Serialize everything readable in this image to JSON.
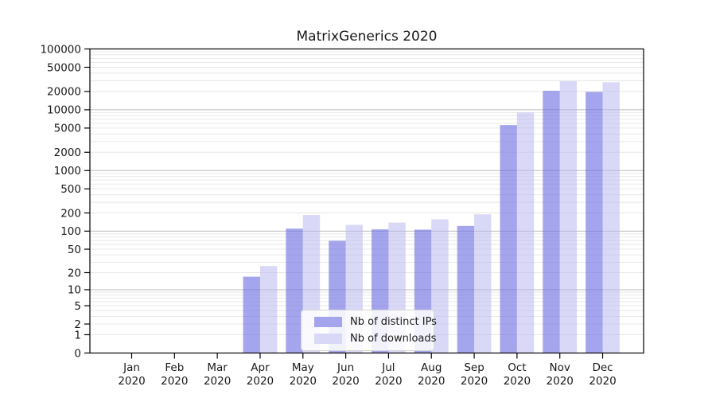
{
  "title": "MatrixGenerics 2020",
  "legend": {
    "items": [
      {
        "label": "Nb of distinct IPs",
        "series_key": "ips"
      },
      {
        "label": "Nb of downloads",
        "series_key": "downloads"
      }
    ],
    "position": "inside-bottom-center"
  },
  "colors": {
    "bar_ips": "rgba(105,105,225,0.6)",
    "bar_downloads": "rgba(180,180,240,0.5)",
    "legend_swatch_ips": "#a5a5ed",
    "legend_swatch_downloads": "#d9d9f7",
    "grid_major": "#bbbbbb",
    "grid_minor": "#e8e8e8",
    "axis": "#000000",
    "text": "#191919"
  },
  "chart_data": {
    "type": "bar",
    "title": "MatrixGenerics 2020",
    "xlabel": "",
    "ylabel": "",
    "yscale": "symlog",
    "ylim": [
      0,
      100000
    ],
    "grid": "on",
    "categories": [
      "Jan 2020",
      "Feb 2020",
      "Mar 2020",
      "Apr 2020",
      "May 2020",
      "Jun 2020",
      "Jul 2020",
      "Aug 2020",
      "Sep 2020",
      "Oct 2020",
      "Nov 2020",
      "Dec 2020"
    ],
    "month_labels": [
      "Jan",
      "Feb",
      "Mar",
      "Apr",
      "May",
      "Jun",
      "Jul",
      "Aug",
      "Sep",
      "Oct",
      "Nov",
      "Dec"
    ],
    "year_label": "2020",
    "y_ticks": [
      0,
      1,
      2,
      5,
      10,
      20,
      50,
      100,
      200,
      500,
      1000,
      2000,
      5000,
      10000,
      20000,
      50000,
      100000
    ],
    "series": [
      {
        "name": "Nb of distinct IPs",
        "values": [
          0,
          0,
          0,
          17,
          110,
          69,
          107,
          106,
          122,
          5600,
          20500,
          19700
        ]
      },
      {
        "name": "Nb of downloads",
        "values": [
          0,
          0,
          0,
          26,
          185,
          127,
          139,
          157,
          190,
          9000,
          29500,
          28400
        ]
      }
    ],
    "legend_position": "bottom-center-inside"
  }
}
